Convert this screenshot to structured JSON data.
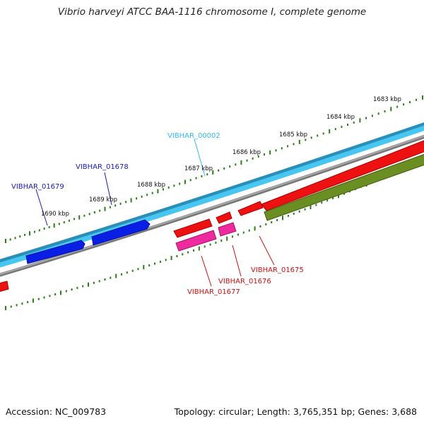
{
  "title": "Vibrio harveyi ATCC BAA-1116 chromosome I, complete genome",
  "footer": {
    "accession": "Accession: NC_009783",
    "summary": "Topology: circular; Length: 3,765,351 bp; Genes: 3,688"
  },
  "colors": {
    "background": "#ffffff",
    "tick": "#2e7d1a",
    "backbone": "#8a8a8a",
    "cds_forward": "#42c3f0",
    "gene_forward": "#0a1fe6",
    "gene_reverse": "#ee1111",
    "misc_reverse": "#ee2a9e",
    "outer_reverse": "#6b8e23",
    "label_forward_cds": "#33bbee",
    "label_forward_gene": "#1a1ab5",
    "label_reverse": "#cc1111"
  },
  "tick_labels": [
    "1683 kbp",
    "1684 kbp",
    "1685 kbp",
    "1686 kbp",
    "1687 kbp",
    "1688 kbp",
    "1689 kbp",
    "1690 kbp"
  ],
  "gene_labels": [
    {
      "text": "VIBHAR_00002",
      "kind": "forward_cds"
    },
    {
      "text": "VIBHAR_01678",
      "kind": "forward_gene"
    },
    {
      "text": "VIBHAR_01679",
      "kind": "forward_gene"
    },
    {
      "text": "VIBHAR_01675",
      "kind": "reverse"
    },
    {
      "text": "VIBHAR_01676",
      "kind": "reverse"
    },
    {
      "text": "VIBHAR_01677",
      "kind": "reverse"
    }
  ]
}
